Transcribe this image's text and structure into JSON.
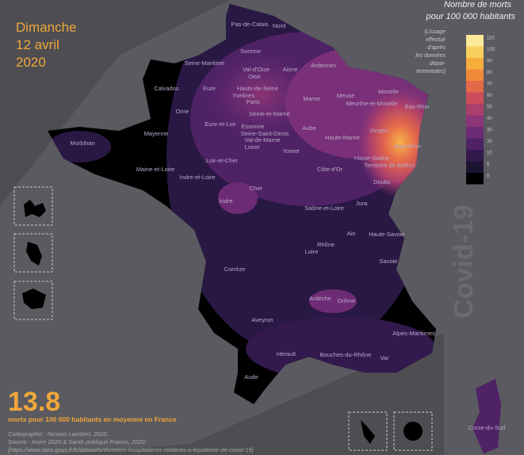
{
  "date": [
    "Dimanche",
    "12 avril",
    "2020"
  ],
  "legend": {
    "title": [
      "Nombre de morts",
      "pour 100 000 habitants"
    ],
    "note": [
      "(Lissage",
      "effectué",
      "d'après",
      "les données",
      "dépar-",
      "tementales)"
    ],
    "ticks": [
      110,
      100,
      90,
      80,
      70,
      60,
      50,
      40,
      30,
      20,
      10,
      5,
      0
    ],
    "colors": [
      "#fde99a",
      "#f9cf5e",
      "#f5ad3c",
      "#ee8a3a",
      "#e4684a",
      "#cc4d5b",
      "#ac3f6c",
      "#8c3577",
      "#6d2b75",
      "#4f2266",
      "#33194e",
      "#1c1331",
      "#000000"
    ]
  },
  "watermark": "Covid-19",
  "average": {
    "value": 13.8,
    "caption": "morts pour 100 000 habitants en moyenne en France"
  },
  "credits": [
    "Cartographie : Nicolas Lambert, 2020.",
    "Source : Insee 2020 & Santé publique France, 2020.",
    "[https://www.data.gouv.fr/fr/datasets/donnees-hospitalieres-relatives-a-lepidemie-de-covid-19]"
  ],
  "departments": [
    "Pas-de-Calais",
    "Nord",
    "Somme",
    "Ardennes",
    "Seine-Maritime",
    "Val-d'Oise",
    "Aisne",
    "Oise",
    "Calvados",
    "Eure",
    "Hauts-de-Seine",
    "Yvelines",
    "Paris",
    "Marne",
    "Meuse",
    "Moselle",
    "Meurthe-et-Moselle",
    "Bas-Rhin",
    "Orne",
    "Seine-et-Marne",
    "Eure-et-Loir",
    "Essonne",
    "Aube",
    "Vosges",
    "Mayenne",
    "Seine-Saint-Denis",
    "Haute-Marne",
    "Val-de-Marne",
    "Morbihan",
    "Loiret",
    "Yonne",
    "Haut-Rhin",
    "Haute-Saône",
    "Loir-et-Cher",
    "Territoire de Belfort",
    "Côte-d'Or",
    "Maine-et-Loire",
    "Indre-et-Loire",
    "Doubs",
    "Cher",
    "Indre",
    "Saône-et-Loire",
    "Jura",
    "Haute-Savoie",
    "Ain",
    "Rhône",
    "Loire",
    "Savoie",
    "Corrèze",
    "Ardèche",
    "Drôme",
    "Aveyron",
    "Alpes-Maritimes",
    "Hérault",
    "Bouches-du-Rhône",
    "Var",
    "Aude",
    "Corse-du-Sud"
  ]
}
